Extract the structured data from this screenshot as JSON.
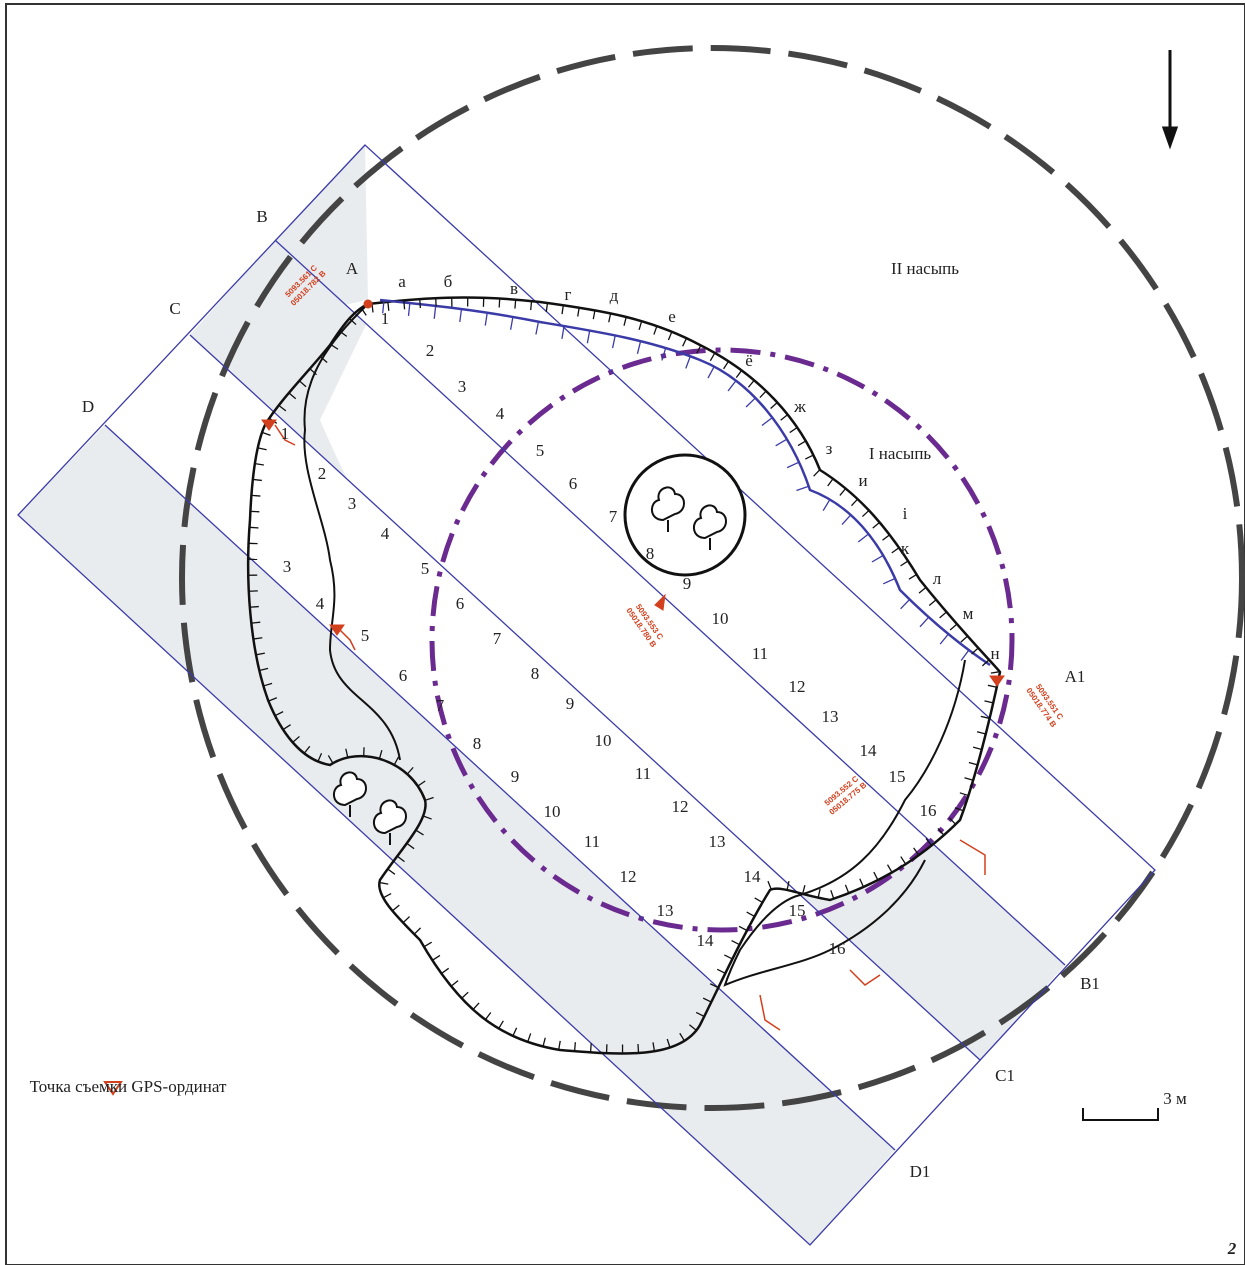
{
  "line_labels": {
    "b": "B",
    "a": "A",
    "c": "C",
    "d": "D",
    "a1": "A1",
    "b1": "B1",
    "c1": "C1",
    "d1": "D1"
  },
  "mound_labels": {
    "outer": "II насыпь",
    "inner": "I насыпь"
  },
  "edge_letters": [
    "а",
    "б",
    "в",
    "г",
    "д",
    "е",
    "ё",
    "ж",
    "з",
    "и",
    "і",
    "к",
    "л",
    "м",
    "н"
  ],
  "line_a_numbers": [
    1,
    2,
    3,
    4,
    5,
    6,
    7,
    8,
    9,
    10,
    11,
    12,
    13,
    14,
    15,
    16
  ],
  "line_c_numbers": [
    1,
    2,
    3,
    4,
    5,
    6,
    7,
    8,
    9,
    10,
    11,
    12,
    13,
    14,
    15,
    16
  ],
  "line_d_numbers": [
    3,
    4,
    5,
    6,
    7,
    8,
    9,
    10,
    11,
    12,
    13,
    14
  ],
  "gps_points": [
    {
      "north": "5093.561 С",
      "east": "05018.782 В"
    },
    {
      "north": "5093.553 С",
      "east": "05018.780 В"
    },
    {
      "north": "5093.551 С",
      "east": "05018.774 В"
    },
    {
      "north": "5093.552 С",
      "east": "05018.775 В"
    }
  ],
  "legend": "Точка съемки GPS-ординат",
  "scale": "3 м",
  "figure_number": "2"
}
